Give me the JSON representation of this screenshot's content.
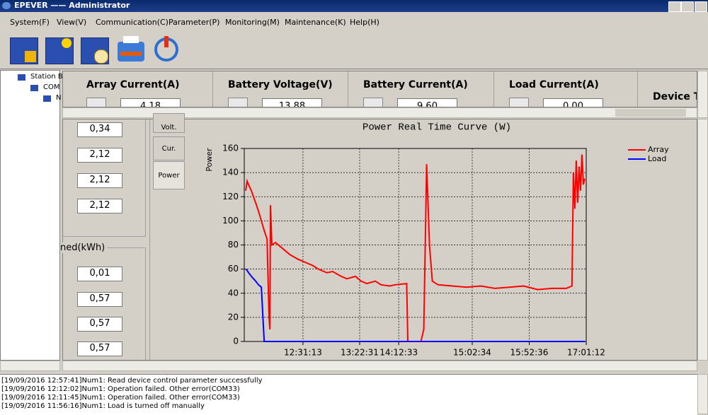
{
  "window": {
    "title": "EPEVER —— Administrator"
  },
  "menu": [
    "System(F)",
    "View(V)",
    "Communication(C)",
    "Parameter(P)",
    "Monitoring(M)",
    "Maintenance(K)",
    "Help(H)"
  ],
  "tree": [
    "Station B",
    "COM",
    "N"
  ],
  "summary": [
    {
      "label": "Array Current(A)",
      "value": "4.18"
    },
    {
      "label": "Battery Voltage(V)",
      "value": "13.88"
    },
    {
      "label": "Battery Current(A)",
      "value": "9.60"
    },
    {
      "label": "Load Current(A)",
      "value": "0.00"
    },
    {
      "label": "Device T"
    }
  ],
  "side_values": [
    "0,34",
    "2,12",
    "2,12",
    "2,12"
  ],
  "energy": {
    "label": "ned(kWh)",
    "values": [
      "0,01",
      "0,57",
      "0,57",
      "0,57"
    ]
  },
  "tabs": [
    "Volt.",
    "Cur.",
    "Power"
  ],
  "chart_data": {
    "type": "line",
    "title": "Power Real Time Curve (W)",
    "y_label": "Power",
    "x": [
      0.5,
      1,
      1.5,
      2.5,
      4,
      5,
      6,
      7,
      8,
      8.7,
      9,
      9.2,
      9.7,
      11,
      14,
      16,
      19,
      21,
      24,
      26,
      29,
      31,
      34,
      36,
      39,
      41,
      43,
      46,
      48,
      51,
      53,
      57,
      57.4,
      62,
      63,
      64,
      65,
      66,
      68,
      73,
      78,
      83,
      88,
      93,
      98,
      103,
      108,
      113,
      115,
      115.5,
      116,
      116.5,
      117,
      117.5,
      118,
      118.5,
      119,
      119.5
    ],
    "series": [
      {
        "name": "Array",
        "color": "#ff0000",
        "values": [
          125,
          133,
          130,
          125,
          115,
          108,
          100,
          92,
          85,
          20,
          10,
          113,
          80,
          82,
          76,
          72,
          68,
          66,
          63,
          60,
          57,
          58,
          54,
          52,
          54,
          50,
          48,
          50,
          47,
          46,
          47,
          48,
          0,
          0,
          10,
          147,
          80,
          50,
          47,
          46,
          45,
          46,
          44,
          45,
          46,
          43,
          44,
          44,
          46,
          140,
          110,
          150,
          115,
          145,
          125,
          155,
          130,
          135
        ]
      },
      {
        "name": "Load",
        "color": "#0000ff",
        "values": [
          60,
          59,
          57,
          54,
          50,
          47,
          45,
          0,
          0,
          0,
          0,
          0,
          0,
          0,
          0,
          0,
          0,
          0,
          0,
          0,
          0,
          0,
          0,
          0,
          0,
          0,
          0,
          0,
          0,
          0,
          0,
          0,
          0,
          0,
          0,
          0,
          0,
          0,
          0,
          0,
          0,
          0,
          0,
          0,
          0,
          0,
          0,
          0,
          0,
          0,
          0,
          0,
          0,
          0,
          0,
          0,
          0,
          0
        ]
      }
    ],
    "xlim": [
      0,
      120
    ],
    "ylim": [
      0,
      160
    ],
    "yticks": [
      0,
      20,
      40,
      60,
      80,
      100,
      120,
      140,
      160
    ],
    "xticks": [
      {
        "value": 20.6,
        "label": "12:31:13"
      },
      {
        "value": 40.5,
        "label": "13:22:31"
      },
      {
        "value": 54.2,
        "label": "14:12:33"
      },
      {
        "value": 80,
        "label": "15:02:34"
      },
      {
        "value": 100,
        "label": "15:52:36"
      },
      {
        "value": 120,
        "label": "17:01:12"
      }
    ],
    "grid": true,
    "legend": "upper right"
  },
  "log": [
    "[19/09/2016 12:57:41]Num1: Read device control parameter successfully",
    "[19/09/2016 12:12:02]Num1: Operation failed. Other error(COM33)",
    "[19/09/2016 12:11:45]Num1: Operation failed. Other error(COM33)",
    "[19/09/2016 11:56:16]Num1: Load is turned off manually"
  ]
}
